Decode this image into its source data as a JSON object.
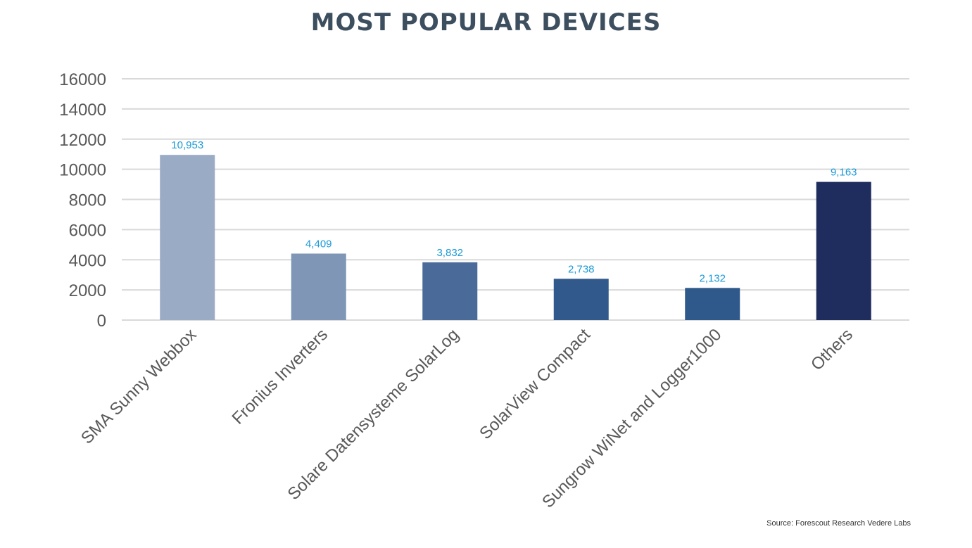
{
  "chart_data": {
    "type": "bar",
    "title": "MOST POPULAR DEVICES",
    "xlabel": "",
    "ylabel": "",
    "categories": [
      "SMA Sunny Webbox",
      "Fronius Inverters",
      "Solare Datensysteme SolarLog",
      "SolarView Compact",
      "Sungrow WiNet and Logger1000",
      "Others"
    ],
    "values": [
      10953,
      4409,
      3832,
      2738,
      2132,
      9163
    ],
    "value_labels": [
      "10,953",
      "4,409",
      "3,832",
      "2,738",
      "2,132",
      "9,163"
    ],
    "bar_colors": [
      "#9aabc6",
      "#7f96b6",
      "#4a6b99",
      "#32598b",
      "#30598b",
      "#1e2d5e"
    ],
    "ylim": [
      0,
      16000
    ],
    "yticks": [
      0,
      2000,
      4000,
      6000,
      8000,
      10000,
      12000,
      14000,
      16000
    ],
    "ytick_labels": [
      "0",
      "2000",
      "4000",
      "6000",
      "8000",
      "10000",
      "12000",
      "14000",
      "16000"
    ],
    "grid": true,
    "legend": "none",
    "value_label_color": "#1a9ad6",
    "source": "Source: Forescout Research Vedere Labs"
  }
}
